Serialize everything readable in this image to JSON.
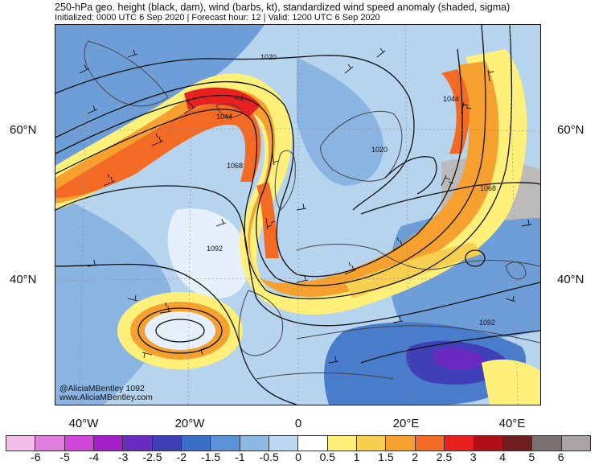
{
  "header": {
    "title": "250-hPa geo. height (black, dam), wind (barbs, kt), standardized wind speed anomaly (shaded, sigma)",
    "subtitle": "Initialized: 0000 UTC 6 Sep 2020 | Forecast hour: 12 | Valid: 1200 UTC 6 Sep 2020"
  },
  "map": {
    "lat_labels": {
      "left_60": "60°N",
      "left_40": "40°N",
      "right_60": "60°N",
      "right_40": "40°N"
    },
    "lon_labels": [
      "40°W",
      "20°W",
      "0",
      "20°E",
      "40°E"
    ],
    "contour_labels": [
      "1020",
      "1044",
      "1068",
      "1092",
      "1020",
      "1044",
      "1068",
      "1092"
    ],
    "credit_line1": "@AliciaMBentley",
    "credit_line2": "www.AliciaMBentley.com",
    "credit_value": "1092"
  },
  "colorbar": {
    "ticks": [
      "-6",
      "-5",
      "-4",
      "-3",
      "-2.5",
      "-2",
      "-1.5",
      "-1",
      "-0.5",
      "0",
      "0.5",
      "1",
      "1.5",
      "2",
      "2.5",
      "3",
      "4",
      "5",
      "6"
    ],
    "colors": [
      "#f2bde8",
      "#e27ee0",
      "#d046d8",
      "#a21ec8",
      "#6a2bc0",
      "#3f3fb8",
      "#3a6fc8",
      "#5c93d8",
      "#8cb8e4",
      "#bcd8f0",
      "#ffffff",
      "#fff07a",
      "#f8d050",
      "#f6a030",
      "#f26a24",
      "#e82020",
      "#b01018",
      "#6e1e1e",
      "#7a7070",
      "#a8a4a4"
    ]
  }
}
